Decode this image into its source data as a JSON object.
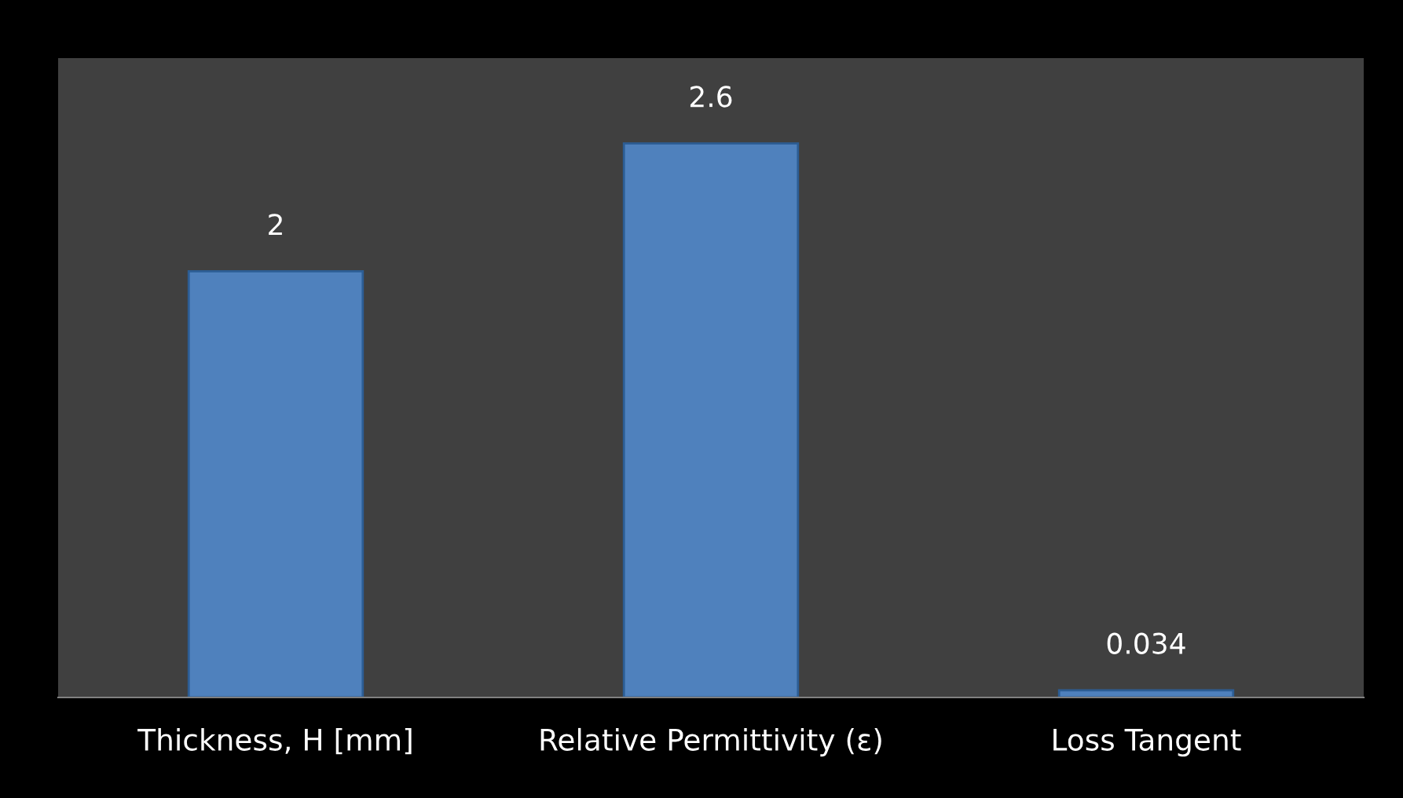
{
  "chart_data": {
    "type": "bar",
    "categories": [
      "Thickness, H [mm]",
      "Relative Permittivity (ε)",
      "Loss Tangent"
    ],
    "values": [
      2,
      2.6,
      0.034
    ],
    "color": "#4f81bd",
    "ylim": [
      0,
      3
    ],
    "data_labels": true,
    "tick_labels": "x",
    "grid": false,
    "legend": false
  }
}
